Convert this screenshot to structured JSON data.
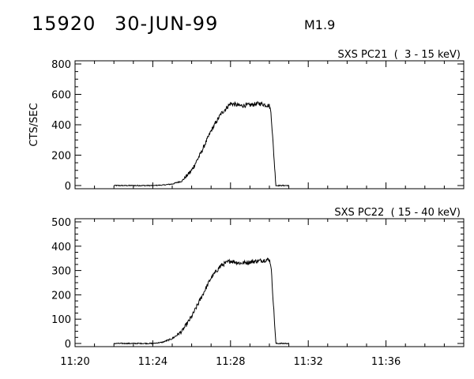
{
  "header": {
    "event_id": "15920",
    "date": "30-JUN-99",
    "flare_class": "M1.9"
  },
  "chart_data": [
    {
      "type": "line",
      "title": "SXS PC21  (  3 - 15 keV)",
      "ylabel": "CTS/SEC",
      "xlabel": "",
      "ylim": [
        0,
        800
      ],
      "yticks": [
        "0",
        "200",
        "400",
        "600",
        "800"
      ],
      "xlim": [
        "11:20",
        "11:40"
      ],
      "xticks": [],
      "color": "#000000",
      "series": [
        {
          "x": [
            "11:22",
            "11:23",
            "11:24",
            "11:24:30",
            "11:25",
            "11:25:30",
            "11:26",
            "11:26:30",
            "11:27",
            "11:27:30",
            "11:28",
            "11:28:30",
            "11:29",
            "11:29:30",
            "11:30",
            "11:30:05",
            "11:30:20",
            "11:31"
          ],
          "values": [
            0,
            0,
            0,
            3,
            10,
            30,
            100,
            220,
            360,
            470,
            540,
            525,
            530,
            540,
            525,
            480,
            0,
            0
          ]
        }
      ]
    },
    {
      "type": "line",
      "title": "SXS PC22  ( 15 - 40 keV)",
      "ylabel": "",
      "xlabel": "",
      "ylim": [
        0,
        500
      ],
      "yticks": [
        "0",
        "100",
        "200",
        "300",
        "400",
        "500"
      ],
      "xlim": [
        "11:20",
        "11:40"
      ],
      "xticks": [
        "11:20",
        "11:24",
        "11:28",
        "11:32",
        "11:36"
      ],
      "color": "#000000",
      "series": [
        {
          "x": [
            "11:22",
            "11:23",
            "11:24",
            "11:24:30",
            "11:25",
            "11:25:30",
            "11:26",
            "11:26:30",
            "11:27",
            "11:27:30",
            "11:28",
            "11:28:30",
            "11:29",
            "11:29:30",
            "11:30",
            "11:30:05",
            "11:30:20",
            "11:31"
          ],
          "values": [
            0,
            0,
            0,
            5,
            20,
            50,
            110,
            190,
            270,
            320,
            340,
            330,
            335,
            340,
            345,
            320,
            0,
            0
          ]
        }
      ]
    }
  ]
}
